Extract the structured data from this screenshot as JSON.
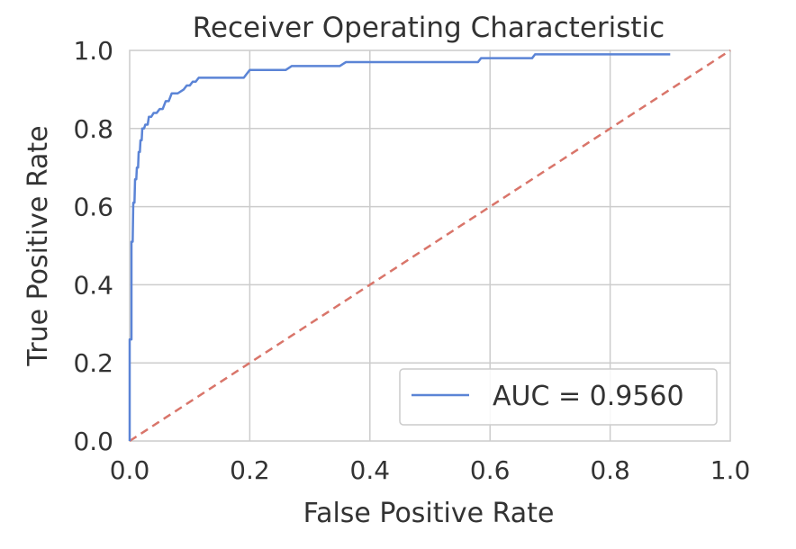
{
  "chart_data": {
    "type": "line",
    "title": "Receiver Operating Characteristic",
    "xlabel": "False Positive Rate",
    "ylabel": "True Positive Rate",
    "xlim": [
      0.0,
      1.0
    ],
    "ylim": [
      0.0,
      1.0
    ],
    "xticks": [
      "0.0",
      "0.2",
      "0.4",
      "0.6",
      "0.8",
      "1.0"
    ],
    "yticks": [
      "0.0",
      "0.2",
      "0.4",
      "0.6",
      "0.8",
      "1.0"
    ],
    "grid": true,
    "legend_position": "lower-right",
    "series": [
      {
        "name": "AUC = 0.9560",
        "style": "solid",
        "color": "#5b84d6",
        "x": [
          0.0,
          0.0,
          0.003,
          0.003,
          0.005,
          0.006,
          0.008,
          0.009,
          0.011,
          0.012,
          0.014,
          0.015,
          0.017,
          0.018,
          0.02,
          0.021,
          0.024,
          0.026,
          0.03,
          0.032,
          0.036,
          0.04,
          0.045,
          0.05,
          0.055,
          0.06,
          0.065,
          0.07,
          0.075,
          0.08,
          0.09,
          0.095,
          0.1,
          0.105,
          0.11,
          0.115,
          0.19,
          0.195,
          0.2,
          0.26,
          0.27,
          0.35,
          0.36,
          0.58,
          0.585,
          0.67,
          0.675,
          0.9
        ],
        "y": [
          0.0,
          0.26,
          0.26,
          0.51,
          0.51,
          0.61,
          0.61,
          0.67,
          0.67,
          0.7,
          0.7,
          0.74,
          0.74,
          0.77,
          0.77,
          0.8,
          0.8,
          0.81,
          0.81,
          0.83,
          0.83,
          0.84,
          0.84,
          0.85,
          0.85,
          0.87,
          0.87,
          0.89,
          0.89,
          0.89,
          0.9,
          0.91,
          0.91,
          0.92,
          0.92,
          0.93,
          0.93,
          0.94,
          0.95,
          0.95,
          0.96,
          0.96,
          0.97,
          0.97,
          0.98,
          0.98,
          0.99,
          0.99
        ]
      },
      {
        "name": "",
        "style": "dashed",
        "color": "#d9756a",
        "x": [
          0.0,
          1.0
        ],
        "y": [
          0.0,
          1.0
        ]
      }
    ]
  }
}
